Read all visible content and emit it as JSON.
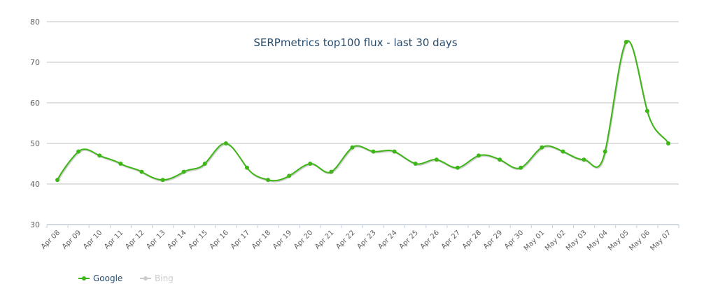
{
  "chart_data": {
    "type": "line",
    "title": "SERPmetrics top100 flux - last 30 days",
    "categories": [
      "Apr 08",
      "Apr 09",
      "Apr 10",
      "Apr 11",
      "Apr 12",
      "Apr 13",
      "Apr 14",
      "Apr 15",
      "Apr 16",
      "Apr 17",
      "Apr 18",
      "Apr 19",
      "Apr 20",
      "Apr 21",
      "Apr 22",
      "Apr 23",
      "Apr 24",
      "Apr 25",
      "Apr 26",
      "Apr 27",
      "Apr 28",
      "Apr 29",
      "Apr 30",
      "May 01",
      "May 02",
      "May 03",
      "May 04",
      "May 05",
      "May 06",
      "May 07"
    ],
    "series": [
      {
        "name": "Google",
        "color": "#3fb618",
        "values": [
          41,
          48,
          47,
          45,
          43,
          41,
          43,
          45,
          50,
          44,
          41,
          42,
          45,
          43,
          49,
          48,
          48,
          45,
          46,
          44,
          47,
          46,
          44,
          49,
          48,
          46,
          48,
          75,
          58,
          50
        ]
      }
    ],
    "hidden_series": [
      {
        "name": "Bing",
        "color": "#cccccc"
      }
    ],
    "ylim": [
      30,
      80
    ],
    "yticks": [
      30,
      40,
      50,
      60,
      70,
      80
    ],
    "grid": true
  }
}
